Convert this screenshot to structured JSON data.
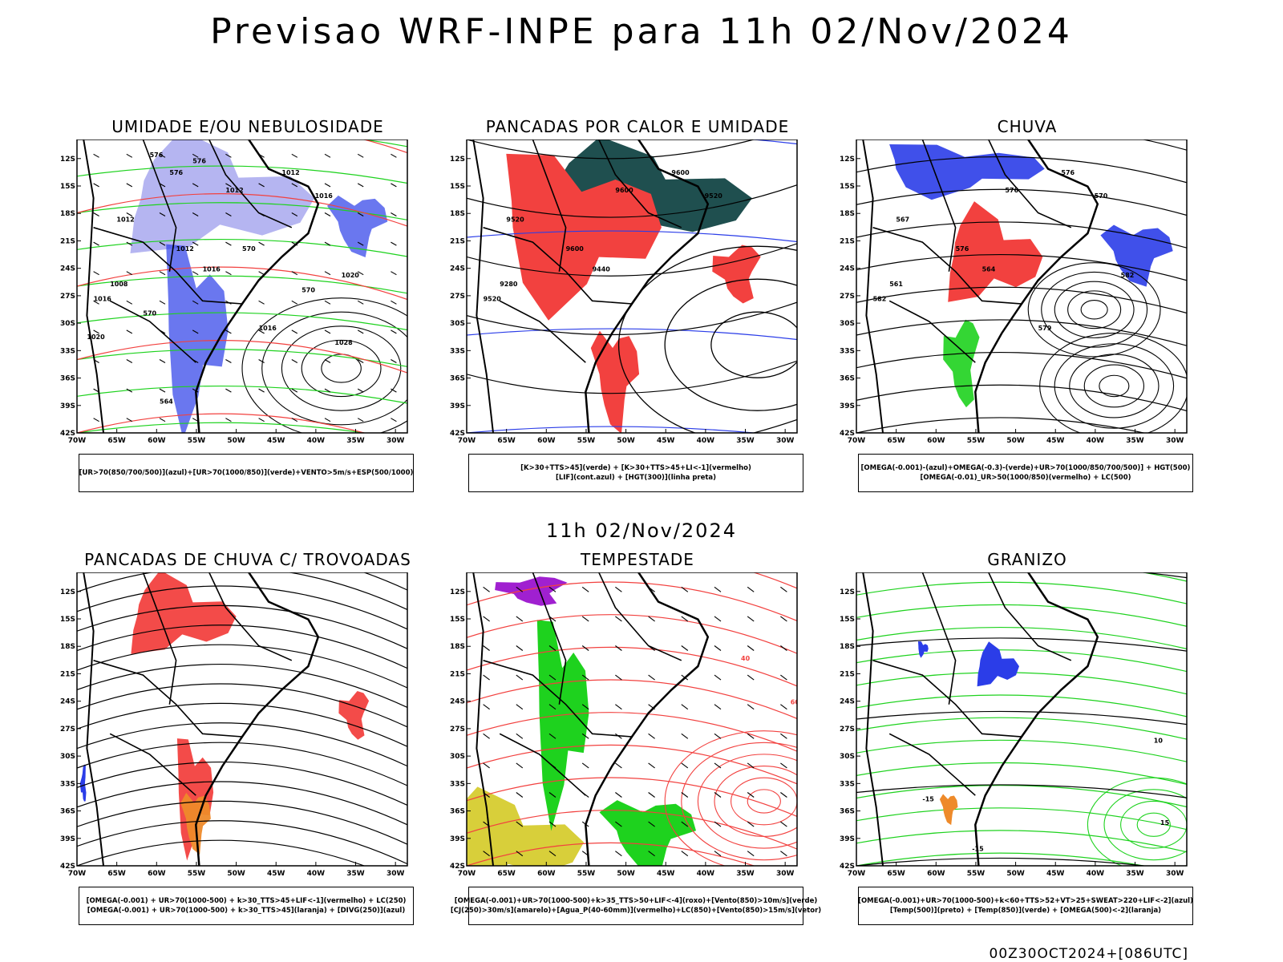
{
  "header": {
    "title": "Previsao WRF-INPE  para 11h 02/Nov/2024",
    "mid_title": "11h 02/Nov/2024",
    "run_stamp": "00Z30OCT2024+[086UTC]"
  },
  "axes": {
    "lat_ticks": [
      "12S",
      "15S",
      "18S",
      "21S",
      "24S",
      "27S",
      "30S",
      "33S",
      "36S",
      "39S",
      "42S"
    ],
    "lon_ticks": [
      "70W",
      "65W",
      "60W",
      "55W",
      "50W",
      "45W",
      "40W",
      "35W",
      "30W"
    ]
  },
  "colors": {
    "blue": "#2b3de8",
    "lavender": "#a8a8ee",
    "green": "#1ed21e",
    "red": "#f2413f",
    "dark_teal": "#1f4f4f",
    "orange": "#ee8a2a",
    "purple": "#a020d0",
    "yellow": "#d8cf3a",
    "black": "#000000"
  },
  "panels": [
    {
      "title": "UMIDADE E/OU NEBULOSIDADE",
      "legend": [
        "[UR>70(850/700/500)](azul)+[UR>70(1000/850)](verde)+VENTO>5m/s+ESP(500/1000)"
      ],
      "contour_labels": [
        "1012",
        "1012",
        "1012",
        "1016",
        "1012",
        "1016",
        "1008",
        "1016",
        "1020",
        "1016",
        "1020",
        "1028",
        "576",
        "576",
        "576",
        "570",
        "570",
        "570",
        "564"
      ]
    },
    {
      "title": "PANCADAS POR CALOR E UMIDADE",
      "legend": [
        "[K>30+TTS>45](verde) + [K>30+TTS>45+LI<-1](vermelho)",
        "[LIF](cont.azul) + [HGT(300)](linha preta)"
      ],
      "contour_labels": [
        "9600",
        "9600",
        "9600",
        "9520",
        "9520",
        "9440",
        "9280",
        "9520"
      ]
    },
    {
      "title": "CHUVA",
      "legend": [
        "[OMEGA(-0.001)-(azul)+OMEGA(-0.3)-(verde)+UR>70(1000/850/700/500)] + HGT(500)",
        "[OMEGA(-0.01)_UR>50(1000/850)(vermelho) + LC(500)"
      ],
      "contour_labels": [
        "576",
        "576",
        "576",
        "570",
        "567",
        "564",
        "561",
        "582",
        "582",
        "579"
      ]
    },
    {
      "title": "PANCADAS DE CHUVA C/ TROVOADAS",
      "legend": [
        "[OMEGA(-0.001) + UR>70(1000-500) + k>30_TTS>45+LIF<-1](vermelho) + LC(250)",
        "[OMEGA(-0.001) + UR>70(1000-500) + k>30_TTS>45](laranja) + [DIVG(250)](azul)"
      ],
      "contour_labels": []
    },
    {
      "title": "TEMPESTADE",
      "legend": [
        "[OMEGA(-0.001)+UR>70(1000-500)+k>35_TTS>50+LIF<-4](roxo)+[Vento(850)>10m/s](verde)",
        "[CJ(250)>30m/s](amarelo)+[Agua_P(40-60mm)](vermelho)+LC(850)+[Vento(850)>15m/s](vetor)"
      ],
      "contour_labels": [
        "40",
        "60"
      ]
    },
    {
      "title": "GRANIZO",
      "legend": [
        "[OMEGA(-0.001)+UR>70(1000-500)+k<60+TTS>52+VT>25+SWEAT>220+LIF<-2](azul)",
        "[Temp(500)](preto) + [Temp(850)](verde) + [OMEGA(500)<-2](laranja)"
      ],
      "contour_labels": [
        "-15",
        "-15",
        "10",
        "15"
      ]
    }
  ]
}
